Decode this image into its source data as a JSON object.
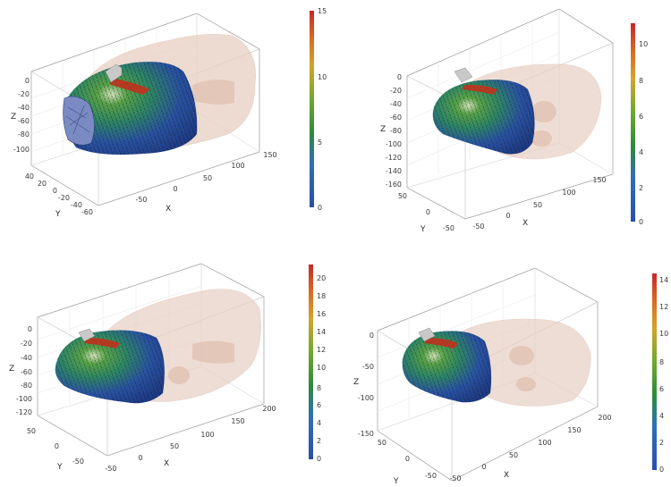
{
  "panels": [
    {
      "colorbar": {
        "ticks": [
          "15",
          "10",
          "5",
          "0"
        ]
      },
      "x_ticks": [
        "-50",
        "0",
        "50",
        "100",
        "150"
      ],
      "y_ticks": [
        "40",
        "20",
        "0",
        "-20",
        "-40",
        "-60"
      ],
      "z_ticks": [
        "0",
        "-20",
        "-40",
        "-60",
        "-80",
        "-100"
      ],
      "xlabel": "X",
      "ylabel": "Y",
      "zlabel": "Z"
    },
    {
      "colorbar": {
        "ticks": [
          "10",
          "8",
          "6",
          "4",
          "2",
          "0"
        ]
      },
      "x_ticks": [
        "-50",
        "0",
        "50",
        "100",
        "150"
      ],
      "y_ticks": [
        "50",
        "0",
        "-50"
      ],
      "z_ticks": [
        "0",
        "-20",
        "-40",
        "-60",
        "-80",
        "-100",
        "-120",
        "-140",
        "-160"
      ],
      "xlabel": "X",
      "ylabel": "Y",
      "zlabel": "Z"
    },
    {
      "colorbar": {
        "ticks": [
          "20",
          "18",
          "16",
          "14",
          "12",
          "10",
          "8",
          "6",
          "4",
          "2",
          "0"
        ]
      },
      "x_ticks": [
        "-50",
        "0",
        "50",
        "100",
        "150",
        "200"
      ],
      "y_ticks": [
        "50",
        "0",
        "-50"
      ],
      "z_ticks": [
        "0",
        "-20",
        "-40",
        "-60",
        "-80",
        "-100",
        "-120"
      ],
      "xlabel": "X",
      "ylabel": "Y",
      "zlabel": "Z"
    },
    {
      "colorbar": {
        "ticks": [
          "14",
          "12",
          "10",
          "8",
          "6",
          "4",
          "2",
          "0"
        ]
      },
      "x_ticks": [
        "-50",
        "0",
        "50",
        "100",
        "150",
        "200"
      ],
      "y_ticks": [
        "50",
        "0",
        "-50"
      ],
      "z_ticks": [
        "0",
        "-50",
        "-100",
        "-150"
      ],
      "xlabel": "X",
      "ylabel": "Y",
      "zlabel": "Z"
    }
  ],
  "colors": {
    "jet_top": "#c62828",
    "jet_mid": "#2e8b3a",
    "jet_bottom": "#2a4fa8",
    "body_fill": "#e8cfc2",
    "mesh_dark": "#1a1a1a"
  }
}
